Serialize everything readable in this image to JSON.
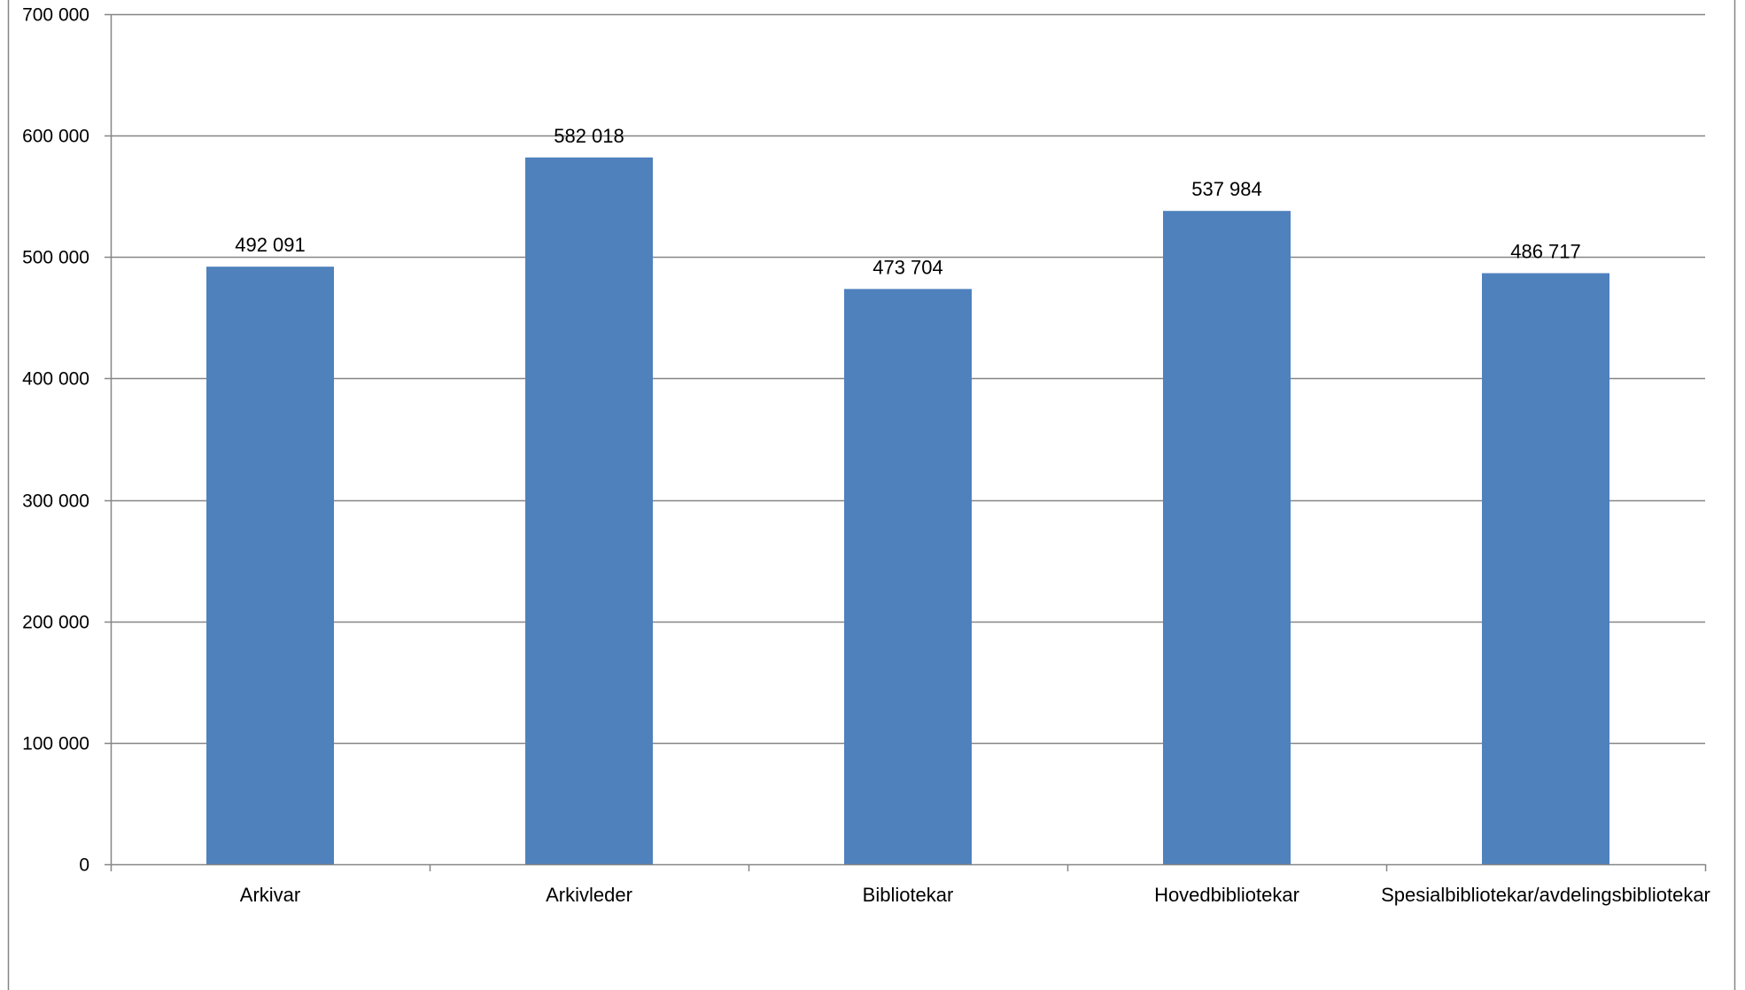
{
  "chart_data": {
    "type": "bar",
    "categories": [
      "Arkivar",
      "Arkivleder",
      "Bibliotekar",
      "Hovedbibliotekar",
      "Spesialbibliotekar/avdelingsbibliotekar"
    ],
    "values": [
      492091,
      582018,
      473704,
      537984,
      486717
    ],
    "data_labels": [
      "492 091",
      "582 018",
      "473 704",
      "537 984",
      "486 717"
    ],
    "y_ticks": [
      0,
      100000,
      200000,
      300000,
      400000,
      500000,
      600000,
      700000
    ],
    "y_tick_labels": [
      "0",
      "100 000",
      "200 000",
      "300 000",
      "400 000",
      "500 000",
      "600 000",
      "700 000"
    ],
    "ylim": [
      0,
      700000
    ],
    "grid": true,
    "legend": "none",
    "title": "",
    "xlabel": "",
    "ylabel": "",
    "colors": {
      "bar": "#4f81bd",
      "grid": "#868686",
      "axis": "#868686",
      "frame": "#868686"
    }
  }
}
